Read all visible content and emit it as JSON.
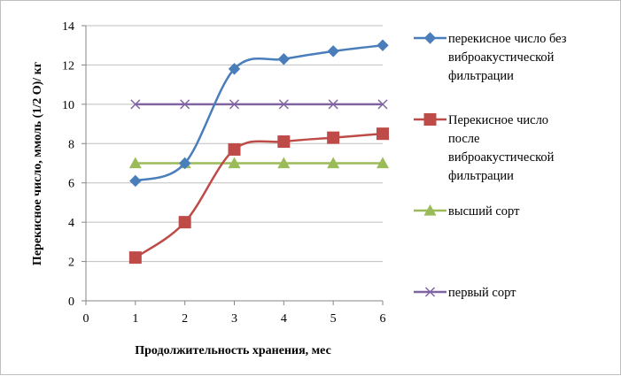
{
  "chart_data": {
    "type": "line",
    "xlabel": "Продолжительность хранения, мес",
    "ylabel": "Перекисное число, ммоль (1/2 О)/ кг",
    "xlim": [
      0,
      6
    ],
    "ylim": [
      0,
      14
    ],
    "xticks": [
      0,
      1,
      2,
      3,
      4,
      5,
      6
    ],
    "yticks": [
      0,
      2,
      4,
      6,
      8,
      10,
      12,
      14
    ],
    "grid": "horizontal",
    "legend_position": "right",
    "x": [
      1,
      2,
      3,
      4,
      5,
      6
    ],
    "series": [
      {
        "name": "перекисное число без виброакустической фильтрации",
        "legend_lines": [
          "перекисное число без",
          "виброакустической",
          "фильтрации"
        ],
        "values": [
          6.1,
          7.0,
          11.8,
          12.3,
          12.7,
          13.0
        ],
        "color": "#4a7ebb",
        "marker": "diamond",
        "smooth": true
      },
      {
        "name": "Перекисное число после виброакустической фильтрации",
        "legend_lines": [
          "Перекисное число",
          "после",
          "виброакустической",
          "фильтрации"
        ],
        "values": [
          2.2,
          4.0,
          7.7,
          8.1,
          8.3,
          8.5
        ],
        "color": "#be4b48",
        "marker": "square",
        "smooth": true
      },
      {
        "name": "высший сорт",
        "legend_lines": [
          "высший сорт"
        ],
        "values": [
          7,
          7,
          7,
          7,
          7,
          7
        ],
        "color": "#9bbb59",
        "marker": "triangle",
        "smooth": false
      },
      {
        "name": "первый сорт",
        "legend_lines": [
          "первый сорт"
        ],
        "values": [
          10,
          10,
          10,
          10,
          10,
          10
        ],
        "color": "#8064a2",
        "marker": "x",
        "smooth": false
      }
    ]
  }
}
